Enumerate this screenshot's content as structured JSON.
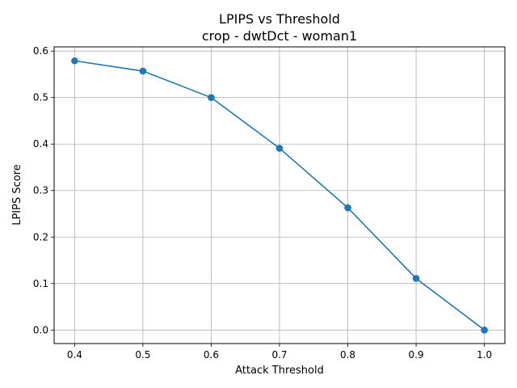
{
  "chart_data": {
    "type": "line",
    "title": "LPIPS vs Threshold",
    "subtitle": "crop - dwtDct - woman1",
    "xlabel": "Attack Threshold",
    "ylabel": "LPIPS Score",
    "xlim": [
      0.37,
      1.03
    ],
    "ylim": [
      -0.029,
      0.609
    ],
    "xticks": [
      "0.4",
      "0.5",
      "0.6",
      "0.7",
      "0.8",
      "0.9",
      "1.0"
    ],
    "yticks": [
      "0.0",
      "0.1",
      "0.2",
      "0.3",
      "0.4",
      "0.5",
      "0.6"
    ],
    "grid": true,
    "series": [
      {
        "color": "#1f77b4",
        "marker": "circle",
        "x": [
          0.4,
          0.5,
          0.6,
          0.7,
          0.8,
          0.9,
          1.0
        ],
        "y": [
          0.579,
          0.557,
          0.5,
          0.391,
          0.263,
          0.111,
          0.0
        ]
      }
    ]
  }
}
